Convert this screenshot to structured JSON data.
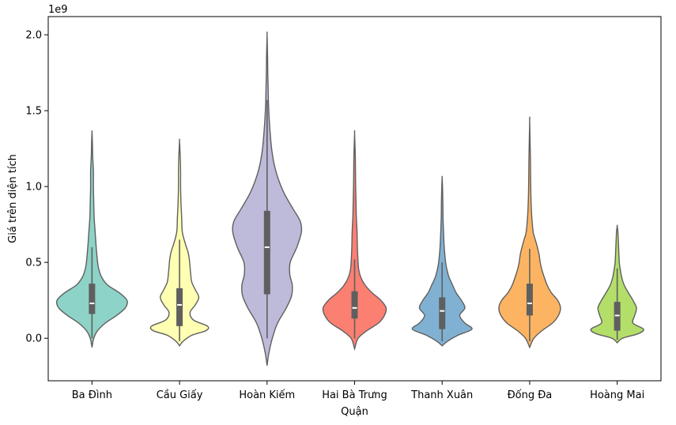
{
  "chart_data": {
    "type": "violin",
    "title": "",
    "xlabel": "Quận",
    "ylabel": "Giá trên diện tích",
    "offset_label": "1e9",
    "ylim": [
      -0.28,
      2.12
    ],
    "y_ticks": [
      0.0,
      0.5,
      1.0,
      1.5,
      2.0
    ],
    "y_tick_labels": [
      "0.0",
      "0.5",
      "1.0",
      "1.5",
      "2.0"
    ],
    "grid": false,
    "legend": "none",
    "categories": [
      "Ba Đình",
      "Cầu Giấy",
      "Hoàn Kiếm",
      "Hai Bà Trưng",
      "Thanh Xuân",
      "Đống Đa",
      "Hoàng Mai"
    ],
    "series": [
      {
        "category": "Ba Đình",
        "color": "#8dd3c7",
        "median": 0.23,
        "q1": 0.16,
        "q3": 0.36,
        "whisker_low": 0.0,
        "whisker_high": 0.6,
        "y_min": -0.06,
        "y_max": 1.36,
        "density": [
          [
            -0.06,
            0.0
          ],
          [
            0.0,
            0.05
          ],
          [
            0.05,
            0.16
          ],
          [
            0.1,
            0.38
          ],
          [
            0.15,
            0.7
          ],
          [
            0.2,
            0.95
          ],
          [
            0.25,
            1.0
          ],
          [
            0.3,
            0.78
          ],
          [
            0.35,
            0.45
          ],
          [
            0.4,
            0.28
          ],
          [
            0.45,
            0.2
          ],
          [
            0.5,
            0.16
          ],
          [
            0.6,
            0.12
          ],
          [
            0.7,
            0.09
          ],
          [
            0.8,
            0.06
          ],
          [
            0.9,
            0.05
          ],
          [
            1.0,
            0.04
          ],
          [
            1.1,
            0.04
          ],
          [
            1.2,
            0.02
          ],
          [
            1.3,
            0.01
          ],
          [
            1.36,
            0.0
          ]
        ]
      },
      {
        "category": "Cầu Giấy",
        "color": "#ffffb3",
        "median": 0.22,
        "q1": 0.08,
        "q3": 0.33,
        "whisker_low": -0.02,
        "whisker_high": 0.65,
        "y_min": -0.05,
        "y_max": 1.3,
        "density": [
          [
            -0.05,
            0.0
          ],
          [
            -0.02,
            0.1
          ],
          [
            0.02,
            0.35
          ],
          [
            0.05,
            0.75
          ],
          [
            0.08,
            0.8
          ],
          [
            0.12,
            0.4
          ],
          [
            0.17,
            0.3
          ],
          [
            0.22,
            0.45
          ],
          [
            0.27,
            0.55
          ],
          [
            0.32,
            0.45
          ],
          [
            0.37,
            0.35
          ],
          [
            0.42,
            0.32
          ],
          [
            0.47,
            0.3
          ],
          [
            0.52,
            0.28
          ],
          [
            0.57,
            0.24
          ],
          [
            0.62,
            0.17
          ],
          [
            0.7,
            0.08
          ],
          [
            0.8,
            0.06
          ],
          [
            0.9,
            0.04
          ],
          [
            1.0,
            0.03
          ],
          [
            1.1,
            0.03
          ],
          [
            1.2,
            0.02
          ],
          [
            1.3,
            0.0
          ]
        ]
      },
      {
        "category": "Hoàn Kiếm",
        "color": "#bebada",
        "median": 0.6,
        "q1": 0.29,
        "q3": 0.84,
        "whisker_low": 0.0,
        "whisker_high": 1.57,
        "y_min": -0.18,
        "y_max": 2.0,
        "density": [
          [
            -0.18,
            0.0
          ],
          [
            -0.1,
            0.05
          ],
          [
            0.0,
            0.15
          ],
          [
            0.1,
            0.3
          ],
          [
            0.2,
            0.55
          ],
          [
            0.28,
            0.7
          ],
          [
            0.35,
            0.72
          ],
          [
            0.42,
            0.65
          ],
          [
            0.5,
            0.66
          ],
          [
            0.6,
            0.85
          ],
          [
            0.7,
            0.98
          ],
          [
            0.77,
            0.95
          ],
          [
            0.85,
            0.75
          ],
          [
            0.95,
            0.5
          ],
          [
            1.05,
            0.32
          ],
          [
            1.15,
            0.2
          ],
          [
            1.25,
            0.13
          ],
          [
            1.35,
            0.09
          ],
          [
            1.45,
            0.06
          ],
          [
            1.55,
            0.04
          ],
          [
            1.65,
            0.03
          ],
          [
            1.75,
            0.02
          ],
          [
            1.85,
            0.015
          ],
          [
            2.0,
            0.0
          ]
        ]
      },
      {
        "category": "Hai Bà Trưng",
        "color": "#fb8072",
        "median": 0.2,
        "q1": 0.13,
        "q3": 0.31,
        "whisker_low": 0.0,
        "whisker_high": 0.52,
        "y_min": -0.07,
        "y_max": 1.35,
        "density": [
          [
            -0.07,
            0.0
          ],
          [
            0.0,
            0.1
          ],
          [
            0.05,
            0.35
          ],
          [
            0.1,
            0.68
          ],
          [
            0.15,
            0.85
          ],
          [
            0.2,
            0.9
          ],
          [
            0.25,
            0.75
          ],
          [
            0.3,
            0.5
          ],
          [
            0.35,
            0.3
          ],
          [
            0.4,
            0.18
          ],
          [
            0.45,
            0.12
          ],
          [
            0.5,
            0.1
          ],
          [
            0.6,
            0.08
          ],
          [
            0.7,
            0.07
          ],
          [
            0.8,
            0.05
          ],
          [
            0.9,
            0.04
          ],
          [
            1.0,
            0.03
          ],
          [
            1.1,
            0.025
          ],
          [
            1.2,
            0.02
          ],
          [
            1.35,
            0.0
          ]
        ]
      },
      {
        "category": "Thanh Xuân",
        "color": "#80b1d3",
        "median": 0.18,
        "q1": 0.06,
        "q3": 0.27,
        "whisker_low": -0.02,
        "whisker_high": 0.5,
        "y_min": -0.05,
        "y_max": 1.06,
        "density": [
          [
            -0.05,
            0.0
          ],
          [
            -0.02,
            0.15
          ],
          [
            0.02,
            0.45
          ],
          [
            0.06,
            0.85
          ],
          [
            0.1,
            0.65
          ],
          [
            0.15,
            0.5
          ],
          [
            0.2,
            0.65
          ],
          [
            0.25,
            0.55
          ],
          [
            0.3,
            0.4
          ],
          [
            0.35,
            0.3
          ],
          [
            0.4,
            0.2
          ],
          [
            0.45,
            0.14
          ],
          [
            0.5,
            0.1
          ],
          [
            0.6,
            0.06
          ],
          [
            0.7,
            0.04
          ],
          [
            0.8,
            0.025
          ],
          [
            0.9,
            0.02
          ],
          [
            1.0,
            0.01
          ],
          [
            1.06,
            0.0
          ]
        ]
      },
      {
        "category": "Đống Đa",
        "color": "#fdb462",
        "median": 0.23,
        "q1": 0.15,
        "q3": 0.36,
        "whisker_low": -0.02,
        "whisker_high": 0.59,
        "y_min": -0.06,
        "y_max": 1.43,
        "density": [
          [
            -0.06,
            0.0
          ],
          [
            0.0,
            0.12
          ],
          [
            0.05,
            0.35
          ],
          [
            0.1,
            0.65
          ],
          [
            0.15,
            0.82
          ],
          [
            0.2,
            0.88
          ],
          [
            0.25,
            0.8
          ],
          [
            0.3,
            0.62
          ],
          [
            0.35,
            0.5
          ],
          [
            0.4,
            0.42
          ],
          [
            0.45,
            0.35
          ],
          [
            0.5,
            0.3
          ],
          [
            0.55,
            0.27
          ],
          [
            0.6,
            0.22
          ],
          [
            0.65,
            0.16
          ],
          [
            0.7,
            0.1
          ],
          [
            0.8,
            0.06
          ],
          [
            0.9,
            0.04
          ],
          [
            1.0,
            0.03
          ],
          [
            1.1,
            0.025
          ],
          [
            1.2,
            0.02
          ],
          [
            1.43,
            0.0
          ]
        ]
      },
      {
        "category": "Hoàng Mai",
        "color": "#b3de69",
        "median": 0.15,
        "q1": 0.05,
        "q3": 0.24,
        "whisker_low": -0.01,
        "whisker_high": 0.46,
        "y_min": -0.03,
        "y_max": 0.74,
        "density": [
          [
            -0.03,
            0.0
          ],
          [
            0.0,
            0.15
          ],
          [
            0.03,
            0.6
          ],
          [
            0.06,
            0.75
          ],
          [
            0.1,
            0.45
          ],
          [
            0.15,
            0.5
          ],
          [
            0.2,
            0.55
          ],
          [
            0.25,
            0.45
          ],
          [
            0.3,
            0.32
          ],
          [
            0.35,
            0.2
          ],
          [
            0.4,
            0.13
          ],
          [
            0.45,
            0.09
          ],
          [
            0.5,
            0.06
          ],
          [
            0.6,
            0.04
          ],
          [
            0.7,
            0.02
          ],
          [
            0.74,
            0.0
          ]
        ]
      }
    ]
  }
}
